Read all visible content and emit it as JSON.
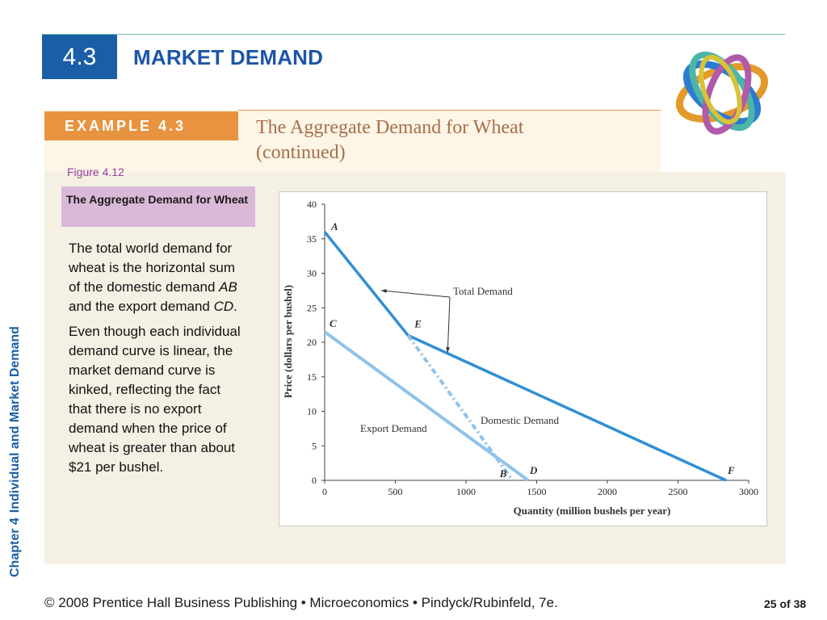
{
  "header": {
    "section_number": "4.3",
    "title": "MARKET DEMAND"
  },
  "sidebar": {
    "chapter": "Chapter 4",
    "chapter_title": "Individual and Market Demand"
  },
  "example": {
    "tab_label": "EXAMPLE 4.3",
    "title_line1": "The Aggregate Demand for Wheat",
    "title_line2": "(continued)"
  },
  "figure": {
    "number": "Figure 4.12",
    "caption": "The Aggregate Demand for Wheat"
  },
  "body": {
    "para1_a": "The total world demand for wheat is the horizontal sum of the domestic demand ",
    "para1_ab": "AB",
    "para1_b": " and the export demand ",
    "para1_cd": "CD",
    "para1_c": ".",
    "para2": "Even though each individual demand curve is linear, the market demand curve is kinked, reflecting the fact that there is no export demand when the price of wheat is greater than about $21 per bushel."
  },
  "footer": {
    "text": "© 2008 Prentice Hall Business Publishing  •  Microeconomics  •  Pindyck/Rubinfeld, 7e.",
    "page": "25 of 38"
  },
  "colors": {
    "line": "#2f8fd6",
    "light_line": "#8fc3ea",
    "accent": "#1a5fa6",
    "example_orange": "#e8933f",
    "caption_bg": "#d9b8d8"
  },
  "chart_data": {
    "type": "line",
    "xlabel": "Quantity (million bushels per year)",
    "ylabel": "Price (dollars per bushel)",
    "xlim": [
      0,
      3000
    ],
    "ylim": [
      0,
      40
    ],
    "x_ticks": [
      0,
      500,
      1000,
      1500,
      2000,
      2500,
      3000
    ],
    "y_ticks": [
      0,
      5,
      10,
      15,
      20,
      25,
      30,
      35,
      40
    ],
    "series": [
      {
        "name": "Total Demand",
        "style": "solid",
        "points": [
          [
            0,
            36
          ],
          [
            590,
            21
          ],
          [
            2840,
            0
          ]
        ]
      },
      {
        "name": "Domestic Demand",
        "style": "dashdot",
        "points": [
          [
            590,
            21
          ],
          [
            1330,
            0
          ]
        ]
      },
      {
        "name": "Export Demand",
        "style": "solid-light",
        "points": [
          [
            0,
            21.5
          ],
          [
            1440,
            0
          ]
        ]
      }
    ],
    "point_labels": [
      {
        "label": "A",
        "x": 0,
        "y": 36
      },
      {
        "label": "E",
        "x": 590,
        "y": 21
      },
      {
        "label": "C",
        "x": 0,
        "y": 21.5
      },
      {
        "label": "B",
        "x": 1330,
        "y": 0
      },
      {
        "label": "D",
        "x": 1440,
        "y": 0
      },
      {
        "label": "F",
        "x": 2840,
        "y": 0
      }
    ]
  }
}
